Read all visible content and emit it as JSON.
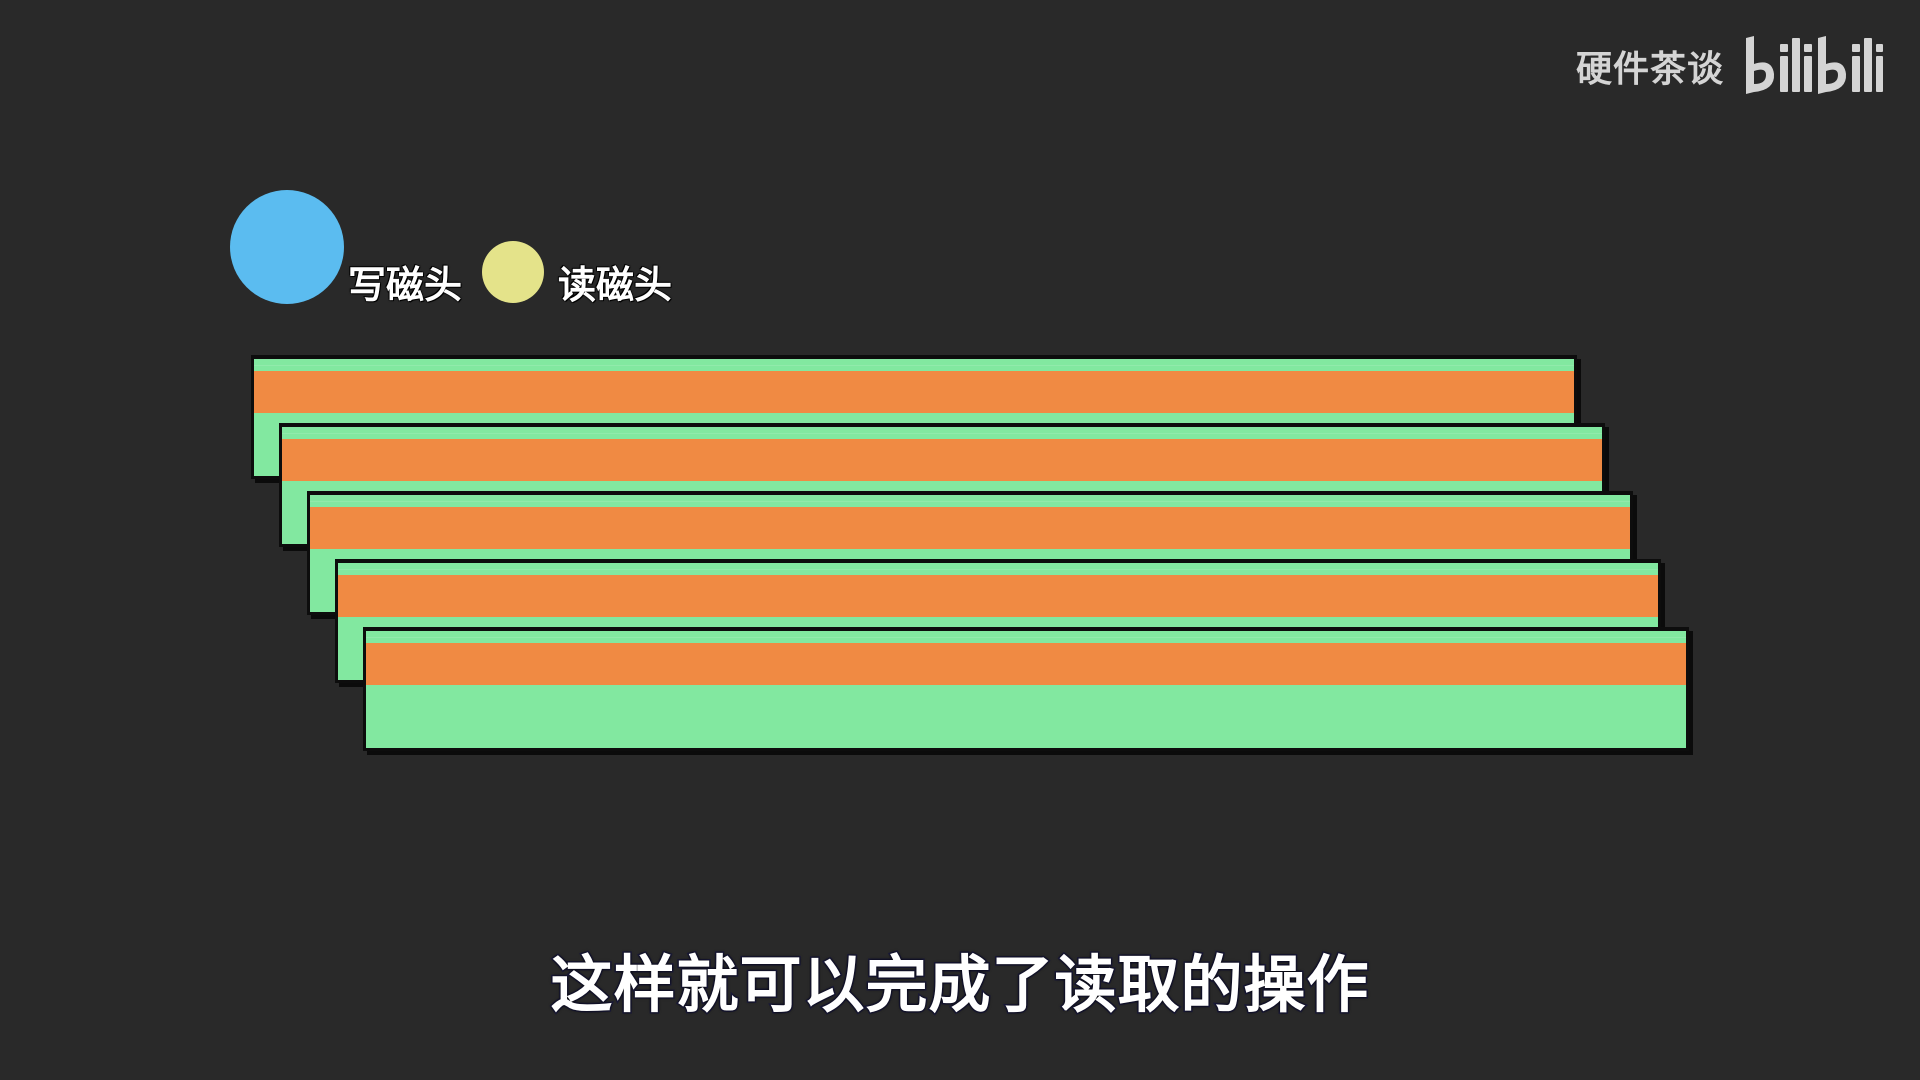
{
  "watermark": {
    "channel_name": "硬件茶谈",
    "logo_text": "bilibili"
  },
  "legend": {
    "write_head": {
      "label": "写磁头",
      "color": "#5bbcf0"
    },
    "read_head": {
      "label": "读磁头",
      "color": "#e4e38a"
    }
  },
  "media_layers": {
    "count": 5,
    "substrate_color": "#82e8a0",
    "stripe_color": "#f08a43"
  },
  "subtitle": "这样就可以完成了读取的操作"
}
